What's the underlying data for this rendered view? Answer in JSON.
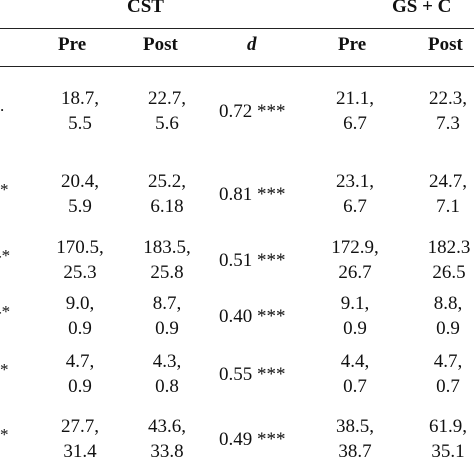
{
  "groups": [
    {
      "label": "CST"
    },
    {
      "label": "GS + C"
    }
  ],
  "columns": [
    "Pre",
    "Post",
    "d",
    "Pre",
    "Post"
  ],
  "rows": [
    {
      "mark": ".",
      "cst_pre": [
        "18.7,",
        "5.5"
      ],
      "cst_post": [
        "22.7,",
        "5.6"
      ],
      "d": "0.72 ***",
      "gs_pre": [
        "21.1,",
        "6.7"
      ],
      "gs_post": [
        "22.3,",
        "7.3"
      ]
    },
    {
      "mark": "*",
      "cst_pre": [
        "20.4,",
        "5.9"
      ],
      "cst_post": [
        "25.2,",
        "6.18"
      ],
      "d": "0.81 ***",
      "gs_pre": [
        "23.1,",
        "6.7"
      ],
      "gs_post": [
        "24.7,",
        "7.1"
      ]
    },
    {
      "mark": "-*",
      "cst_pre": [
        "170.5,",
        "25.3"
      ],
      "cst_post": [
        "183.5,",
        "25.8"
      ],
      "d": "0.51 ***",
      "gs_pre": [
        "172.9,",
        "26.7"
      ],
      "gs_post": [
        "182.3",
        "26.5"
      ]
    },
    {
      "mark": "-*",
      "cst_pre": [
        "9.0,",
        "0.9"
      ],
      "cst_post": [
        "8.7,",
        "0.9"
      ],
      "d": "0.40 ***",
      "gs_pre": [
        "9.1,",
        "0.9"
      ],
      "gs_post": [
        "8.8,",
        "0.9"
      ]
    },
    {
      "mark": "*",
      "cst_pre": [
        "4.7,",
        "0.9"
      ],
      "cst_post": [
        "4.3,",
        "0.8"
      ],
      "d": "0.55 ***",
      "gs_pre": [
        "4.4,",
        "0.7"
      ],
      "gs_post": [
        "4.7,",
        "0.7"
      ]
    },
    {
      "mark": "*",
      "cst_pre": [
        "27.7,",
        "31.4"
      ],
      "cst_post": [
        "43.6,",
        "33.8"
      ],
      "d": "0.49 ***",
      "gs_pre": [
        "38.5,",
        "38.7"
      ],
      "gs_post": [
        "61.9,",
        "35.1"
      ]
    }
  ]
}
